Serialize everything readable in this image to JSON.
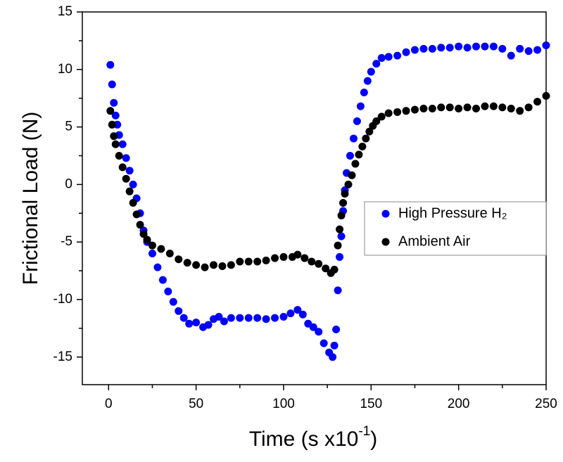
{
  "chart_data": {
    "type": "scatter",
    "xlabel": "Time (s x10",
    "xlabel_sup": "-1",
    "xlabel_end": ")",
    "ylabel": "Frictional Load (N)",
    "xlim": [
      -15,
      250
    ],
    "ylim": [
      -17.4,
      15
    ],
    "xticks": [
      0,
      50,
      100,
      150,
      200,
      250
    ],
    "xminorticks": [
      25,
      75,
      125,
      175,
      225
    ],
    "yticks": [
      -15,
      -10,
      -5,
      0,
      5,
      10,
      15
    ],
    "yminorticks": [
      -12.5,
      -7.5,
      -2.5,
      2.5,
      7.5,
      12.5
    ],
    "legend": "right",
    "series": [
      {
        "name": "High Pressure H₂",
        "color": "#0000ff",
        "x": [
          1,
          2,
          3,
          4,
          5,
          6,
          8,
          10,
          12,
          14,
          16,
          18,
          20,
          22,
          25,
          28,
          31,
          34,
          37,
          40,
          43,
          46,
          50,
          54,
          57,
          60,
          63,
          66,
          70,
          75,
          80,
          85,
          90,
          95,
          100,
          104,
          108,
          111,
          114,
          117,
          120,
          123,
          126,
          128,
          129,
          130,
          131,
          132,
          133,
          134,
          135,
          136,
          138,
          140,
          142,
          144,
          146,
          148,
          150,
          153,
          156,
          160,
          165,
          170,
          175,
          180,
          185,
          190,
          195,
          200,
          205,
          210,
          215,
          220,
          225,
          230,
          235,
          240,
          245,
          250
        ],
        "values": [
          10.4,
          8.7,
          7.1,
          6,
          5.2,
          4.3,
          3.5,
          2.3,
          1.2,
          0,
          -1.2,
          -2.5,
          -4,
          -5,
          -6,
          -7.2,
          -8.3,
          -9.3,
          -10.2,
          -11,
          -11.6,
          -12.1,
          -12,
          -12.4,
          -12.2,
          -11.7,
          -11.5,
          -11.9,
          -11.6,
          -11.6,
          -11.6,
          -11.6,
          -11.7,
          -11.6,
          -11.5,
          -11.2,
          -10.9,
          -11.3,
          -12.1,
          -12.4,
          -12.8,
          -13.8,
          -14.6,
          -15,
          -14,
          -12.6,
          -9.2,
          -6.3,
          -4.5,
          -2.3,
          -0.5,
          1,
          2.5,
          4,
          5.5,
          6.8,
          8,
          9,
          9.8,
          10.5,
          11,
          11.1,
          11.2,
          11.5,
          11.7,
          11.8,
          11.8,
          11.9,
          11.9,
          12,
          11.9,
          12,
          12,
          12,
          11.8,
          11.2,
          11.8,
          11.6,
          11.7,
          12.1
        ]
      },
      {
        "name": "Ambient Air",
        "color": "#000000",
        "x": [
          1,
          2,
          3,
          4,
          6,
          8,
          10,
          12,
          14,
          16,
          18,
          20,
          22,
          25,
          30,
          35,
          40,
          45,
          50,
          55,
          60,
          65,
          70,
          75,
          80,
          85,
          90,
          95,
          100,
          105,
          108,
          112,
          116,
          120,
          124,
          127,
          129,
          131,
          132,
          133,
          134,
          135,
          137,
          139,
          141,
          143,
          145,
          147,
          149,
          151,
          153,
          156,
          160,
          165,
          170,
          175,
          180,
          185,
          190,
          195,
          200,
          205,
          210,
          215,
          220,
          225,
          230,
          235,
          240,
          245,
          250
        ],
        "values": [
          6.4,
          5.2,
          4.2,
          3.5,
          2.5,
          1.5,
          0.5,
          -0.6,
          -1.6,
          -2.6,
          -3.5,
          -4.3,
          -4.8,
          -5.3,
          -5.6,
          -6,
          -6.5,
          -6.8,
          -7,
          -7.2,
          -7,
          -7.1,
          -7,
          -6.7,
          -6.7,
          -6.7,
          -6.6,
          -6.4,
          -6.3,
          -6.3,
          -6.1,
          -6.4,
          -6.7,
          -6.9,
          -7.3,
          -7.7,
          -7.4,
          -5.3,
          -3.9,
          -2.7,
          -1.6,
          -0.8,
          0,
          0.8,
          1.8,
          2.6,
          3.3,
          4,
          4.6,
          5.1,
          5.5,
          5.9,
          6.2,
          6.3,
          6.4,
          6.5,
          6.6,
          6.6,
          6.7,
          6.7,
          6.6,
          6.7,
          6.6,
          6.8,
          6.8,
          6.7,
          6.6,
          6.4,
          6.7,
          7.2,
          7.7
        ]
      }
    ]
  }
}
